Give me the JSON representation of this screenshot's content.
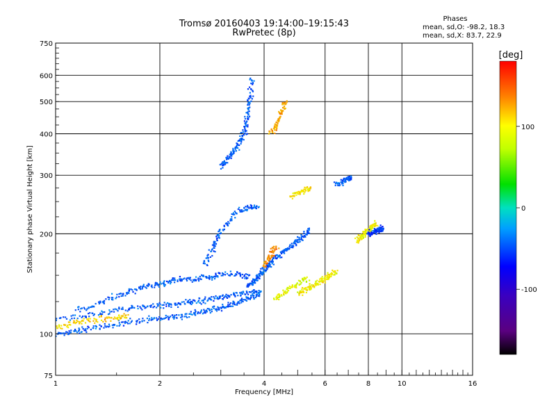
{
  "chart_data": {
    "type": "scatter",
    "title": "Tromsø 20160403 19:14:00–19:15:43",
    "subtitle": "RwPretec (8p)",
    "xlabel": "Frequency [MHz]",
    "ylabel": "Stationary phase Virtual Height [km]",
    "x_scale": "log",
    "y_scale": "log",
    "xlim": [
      1,
      16
    ],
    "ylim": [
      75,
      750
    ],
    "x_ticks": [
      1,
      2,
      4,
      6,
      8,
      10,
      16
    ],
    "x_tick_labels": [
      "1",
      "2",
      "4",
      "6",
      "8",
      "10",
      "16"
    ],
    "y_ticks": [
      75,
      100,
      200,
      300,
      400,
      500,
      600,
      750
    ],
    "y_tick_labels": [
      "75",
      "100",
      "200",
      "300",
      "400",
      "500",
      "600",
      "750"
    ],
    "grid": true,
    "stats": {
      "heading": "Phases",
      "line_O": "mean, sd,O: -98.2, 18.3",
      "line_X": "mean, sd,X: 83.7, 22.9"
    },
    "colorbar": {
      "label": "[deg]",
      "range": [
        -180,
        180
      ],
      "ticks": [
        100,
        0,
        -100
      ],
      "tick_labels": [
        "100",
        "0",
        "-100"
      ]
    },
    "series": [
      {
        "traces": [
          {
            "f": [
              1.0,
              1.1,
              1.2,
              1.35,
              1.5,
              1.7,
              1.9,
              2.1,
              2.3,
              2.5,
              2.7,
              2.9,
              3.1,
              3.3,
              3.5,
              3.7,
              3.9
            ],
            "h": [
              100,
              101,
              103,
              105,
              107,
              109,
              111,
              112,
              113,
              115,
              117,
              119,
              121,
              124,
              127,
              130,
              133
            ],
            "phase": -100
          },
          {
            "f": [
              1.0,
              1.2,
              1.4,
              1.6,
              1.8,
              2.0,
              2.2,
              2.4,
              2.6,
              2.8,
              3.0,
              3.2,
              3.5,
              3.8
            ],
            "h": [
              111,
              113,
              116,
              119,
              121,
              122,
              123,
              124,
              125,
              127,
              128,
              130,
              133,
              135
            ],
            "phase": -100
          },
          {
            "f": [
              1.15,
              1.3,
              1.45,
              1.6,
              1.75,
              1.9,
              2.05,
              2.2,
              2.4,
              2.6,
              2.8,
              3.0,
              3.3,
              3.6
            ],
            "h": [
              118,
              122,
              128,
              133,
              137,
              140,
              142,
              145,
              146,
              147,
              148,
              150,
              152,
              148
            ],
            "phase": -100
          },
          {
            "f": [
              3.0,
              3.1,
              3.2,
              3.3,
              3.4,
              3.5,
              3.55,
              3.6,
              3.65,
              3.7
            ],
            "h": [
              320,
              330,
              345,
              360,
              380,
              405,
              430,
              470,
              520,
              580
            ],
            "phase": -100
          },
          {
            "f": [
              2.7,
              2.8,
              2.9,
              3.0,
              3.2,
              3.4,
              3.6,
              3.8
            ],
            "h": [
              160,
              175,
              190,
              205,
              220,
              235,
              240,
              240
            ],
            "phase": -100
          },
          {
            "f": [
              3.6,
              3.7,
              3.8,
              3.9,
              4.0,
              4.1,
              4.2,
              4.4,
              4.6,
              4.8,
              5.0,
              5.2,
              5.4
            ],
            "h": [
              140,
              143,
              146,
              150,
              155,
              160,
              165,
              172,
              178,
              184,
              190,
              196,
              205
            ],
            "phase": -100
          },
          {
            "f": [
              4.3,
              4.5,
              4.7,
              5.0,
              5.3
            ],
            "h": [
              128,
              131,
              136,
              141,
              147
            ],
            "phase": 95
          },
          {
            "f": [
              5.0,
              5.2,
              5.4,
              5.6,
              5.8,
              6.0,
              6.2,
              6.4
            ],
            "h": [
              131,
              135,
              138,
              141,
              144,
              147,
              150,
              153
            ],
            "phase": 105
          },
          {
            "f": [
              1.0,
              1.1,
              1.2,
              1.35,
              1.5,
              1.6
            ],
            "h": [
              105,
              107,
              109,
              111,
              112,
              113
            ],
            "phase": 115
          },
          {
            "f": [
              4.2,
              4.3,
              4.4,
              4.5,
              4.6
            ],
            "h": [
              400,
              420,
              440,
              470,
              500
            ],
            "phase": 130
          },
          {
            "f": [
              4.0,
              4.1,
              4.2,
              4.3
            ],
            "h": [
              160,
              168,
              175,
              182
            ],
            "phase": 140
          },
          {
            "f": [
              7.4,
              7.6,
              7.8,
              8.0,
              8.2,
              8.4
            ],
            "h": [
              190,
              195,
              200,
              205,
              210,
              214
            ],
            "phase": 105
          },
          {
            "f": [
              8.0,
              8.2,
              8.4,
              8.6,
              8.8
            ],
            "h": [
              200,
              202,
              204,
              206,
              208
            ],
            "phase": -110
          },
          {
            "f": [
              6.5,
              6.7,
              6.9,
              7.1
            ],
            "h": [
              280,
              285,
              290,
              295
            ],
            "phase": -100
          },
          {
            "f": [
              4.8,
              5.0,
              5.2,
              5.4
            ],
            "h": [
              260,
              265,
              270,
              275
            ],
            "phase": 110
          }
        ]
      }
    ]
  }
}
